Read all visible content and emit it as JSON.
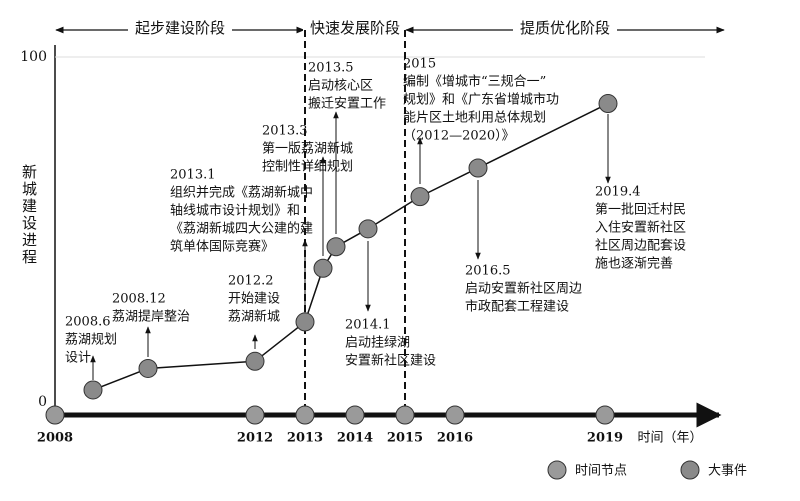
{
  "chart_data": {
    "type": "line",
    "y_label": "新城建设进程",
    "x_label": "时间（年）",
    "xlim": [
      2008,
      2021.4
    ],
    "ylim": [
      0,
      100
    ],
    "yticks": [
      0,
      100
    ],
    "xticks": [
      2008,
      2012,
      2013,
      2014,
      2015,
      2016,
      2019
    ],
    "grid": true,
    "time_node_label": "时间节点",
    "time_node_color": "#9a9a9a",
    "x": [
      2008.76,
      2009.86,
      2012.0,
      2013.0,
      2013.36,
      2013.62,
      2014.26,
      2015.3,
      2016.46,
      2019.06
    ],
    "series": [
      {
        "name": "大事件",
        "color": "#8a8a8a",
        "values": [
          7,
          13,
          15,
          26,
          41,
          47,
          52,
          61,
          69,
          87
        ]
      }
    ],
    "phases": [
      {
        "label": "起步建设阶段",
        "start": 2008,
        "end": 2013
      },
      {
        "label": "快速发展阶段",
        "start": 2013,
        "end": 2015
      },
      {
        "label": "提质优化阶段",
        "start": 2015,
        "end": 2021.4
      }
    ],
    "annotations": [
      {
        "lines": [
          "2008.6",
          "荔湖规划",
          "设计"
        ]
      },
      {
        "lines": [
          "2008.12",
          "荔湖提岸整治"
        ]
      },
      {
        "lines": [
          "2012.2",
          "开始建设",
          "荔湖新城"
        ]
      },
      {
        "lines": [
          "2013.1",
          "组织并完成《荔湖新城中",
          "轴线城市设计规划》和",
          "《荔湖新城四大公建的建",
          "筑单体国际竞赛》"
        ]
      },
      {
        "lines": [
          "2013.3",
          "第一版荔湖新城",
          "控制性详细规划"
        ]
      },
      {
        "lines": [
          "2013.5",
          "启动核心区",
          "搬迁安置工作"
        ]
      },
      {
        "lines": [
          "2014.1",
          "启动挂绿湖",
          "安置新社区建设"
        ]
      },
      {
        "lines": [
          "2015",
          "编制《增城市“三规合一”",
          "规划》和《广东省增城市功",
          "能片区土地利用总体规划",
          "（2012—2020）》"
        ]
      },
      {
        "lines": [
          "2016.5",
          "启动安置新社区周边",
          "市政配套工程建设"
        ]
      },
      {
        "lines": [
          "2019.4",
          "第一批回迁村民",
          "入住安置新社区",
          "社区周边配套设",
          "施也逐渐完善"
        ]
      }
    ]
  }
}
